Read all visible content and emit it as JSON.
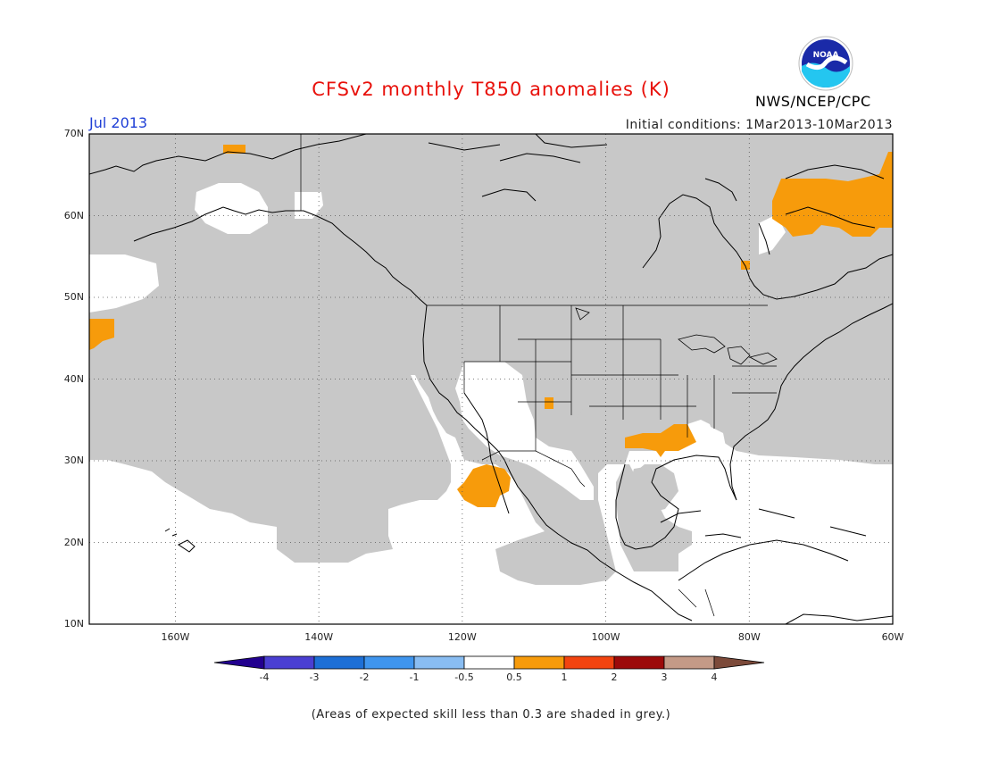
{
  "header": {
    "title": "CFSv2 monthly T850 anomalies (K)",
    "month": "Jul 2013",
    "initial_conditions": "Initial conditions: 1Mar2013-10Mar2013",
    "agency": "NWS/NCEP/CPC",
    "logo_text": "NOAA"
  },
  "map": {
    "lat_range": [
      10,
      70
    ],
    "lon_range": [
      -172,
      -60
    ],
    "lat_ticks": [
      {
        "value": 70,
        "label": "70N"
      },
      {
        "value": 60,
        "label": "60N"
      },
      {
        "value": 50,
        "label": "50N"
      },
      {
        "value": 40,
        "label": "40N"
      },
      {
        "value": 30,
        "label": "30N"
      },
      {
        "value": 20,
        "label": "20N"
      },
      {
        "value": 10,
        "label": "10N"
      }
    ],
    "lon_ticks": [
      {
        "value": -160,
        "label": "160W"
      },
      {
        "value": -140,
        "label": "140W"
      },
      {
        "value": -120,
        "label": "120W"
      },
      {
        "value": -100,
        "label": "100W"
      },
      {
        "value": -80,
        "label": "80W"
      },
      {
        "value": -60,
        "label": "60W"
      }
    ],
    "colors": {
      "low_skill_grey": "#c8c8c8",
      "positive_0_5_to_1": "#f79b0b",
      "coast": "#000000",
      "grid": "#555555"
    },
    "positive_anomaly_regions": [
      "Baffin Island / Davis Strait",
      "Northwest Baja California",
      "Lower Mississippi Valley",
      "Alaska interior",
      "Central Pacific near 45N"
    ]
  },
  "colorbar": {
    "labels": [
      "-4",
      "-3",
      "-2",
      "-1",
      "-0.5",
      "0.5",
      "1",
      "2",
      "3",
      "4"
    ],
    "colors": [
      "#22008f",
      "#4a3fd2",
      "#1d6fd6",
      "#3f95ee",
      "#89bdf2",
      "#ffffff",
      "#f79b0b",
      "#f24410",
      "#9c0a0a",
      "#c49a87",
      "#7c4a3a"
    ]
  },
  "footnote": "(Areas of expected skill less than 0.3 are shaded in grey.)"
}
